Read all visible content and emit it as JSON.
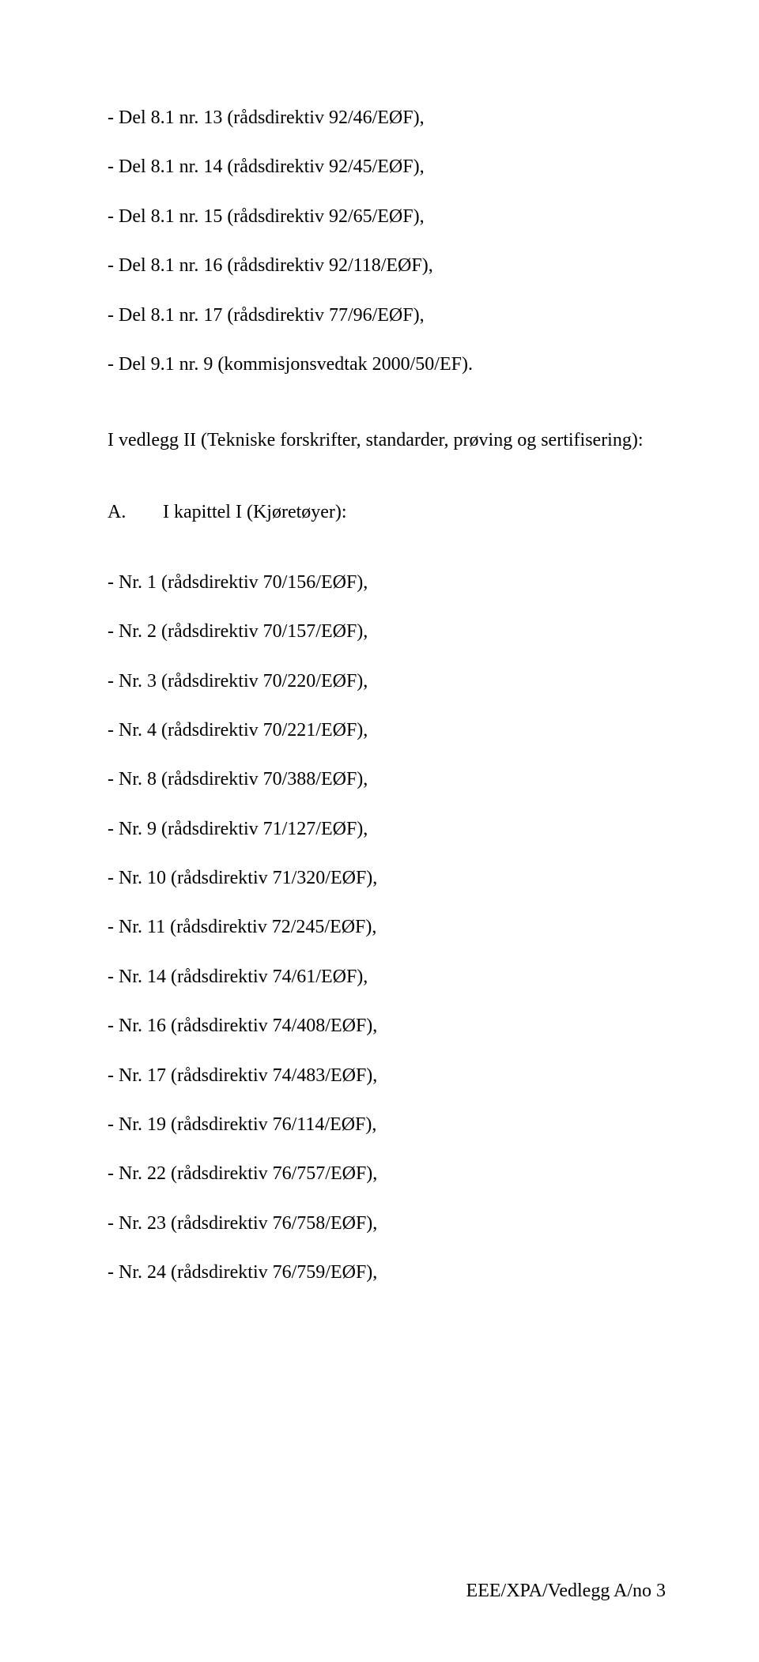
{
  "block1": [
    "- Del 8.1 nr. 13 (rådsdirektiv 92/46/EØF),",
    "- Del 8.1 nr. 14 (rådsdirektiv 92/45/EØF),",
    "- Del 8.1 nr. 15 (rådsdirektiv 92/65/EØF),",
    "- Del 8.1 nr. 16 (rådsdirektiv 92/118/EØF),",
    "- Del 8.1 nr. 17 (rådsdirektiv 77/96/EØF),",
    "- Del 9.1 nr. 9 (kommisjonsvedtak 2000/50/EF)."
  ],
  "intro": "I vedlegg II (Tekniske forskrifter, standarder, prøving og sertifisering):",
  "section": {
    "letter": "A.",
    "title": "I kapittel I (Kjøretøyer):"
  },
  "block2": [
    "- Nr. 1 (rådsdirektiv 70/156/EØF),",
    "- Nr. 2 (rådsdirektiv 70/157/EØF),",
    "- Nr. 3 (rådsdirektiv 70/220/EØF),",
    "- Nr. 4 (rådsdirektiv 70/221/EØF),",
    "- Nr. 8 (rådsdirektiv 70/388/EØF),",
    "- Nr. 9 (rådsdirektiv 71/127/EØF),",
    "- Nr. 10 (rådsdirektiv 71/320/EØF),",
    "- Nr. 11 (rådsdirektiv 72/245/EØF),",
    "- Nr. 14 (rådsdirektiv 74/61/EØF),",
    "- Nr. 16 (rådsdirektiv 74/408/EØF),",
    "- Nr. 17 (rådsdirektiv 74/483/EØF),",
    "- Nr. 19 (rådsdirektiv 76/114/EØF),",
    "- Nr. 22 (rådsdirektiv 76/757/EØF),",
    "- Nr. 23 (rådsdirektiv 76/758/EØF),",
    "- Nr. 24 (rådsdirektiv 76/759/EØF),"
  ],
  "footer": "EEE/XPA/Vedlegg A/no 3"
}
